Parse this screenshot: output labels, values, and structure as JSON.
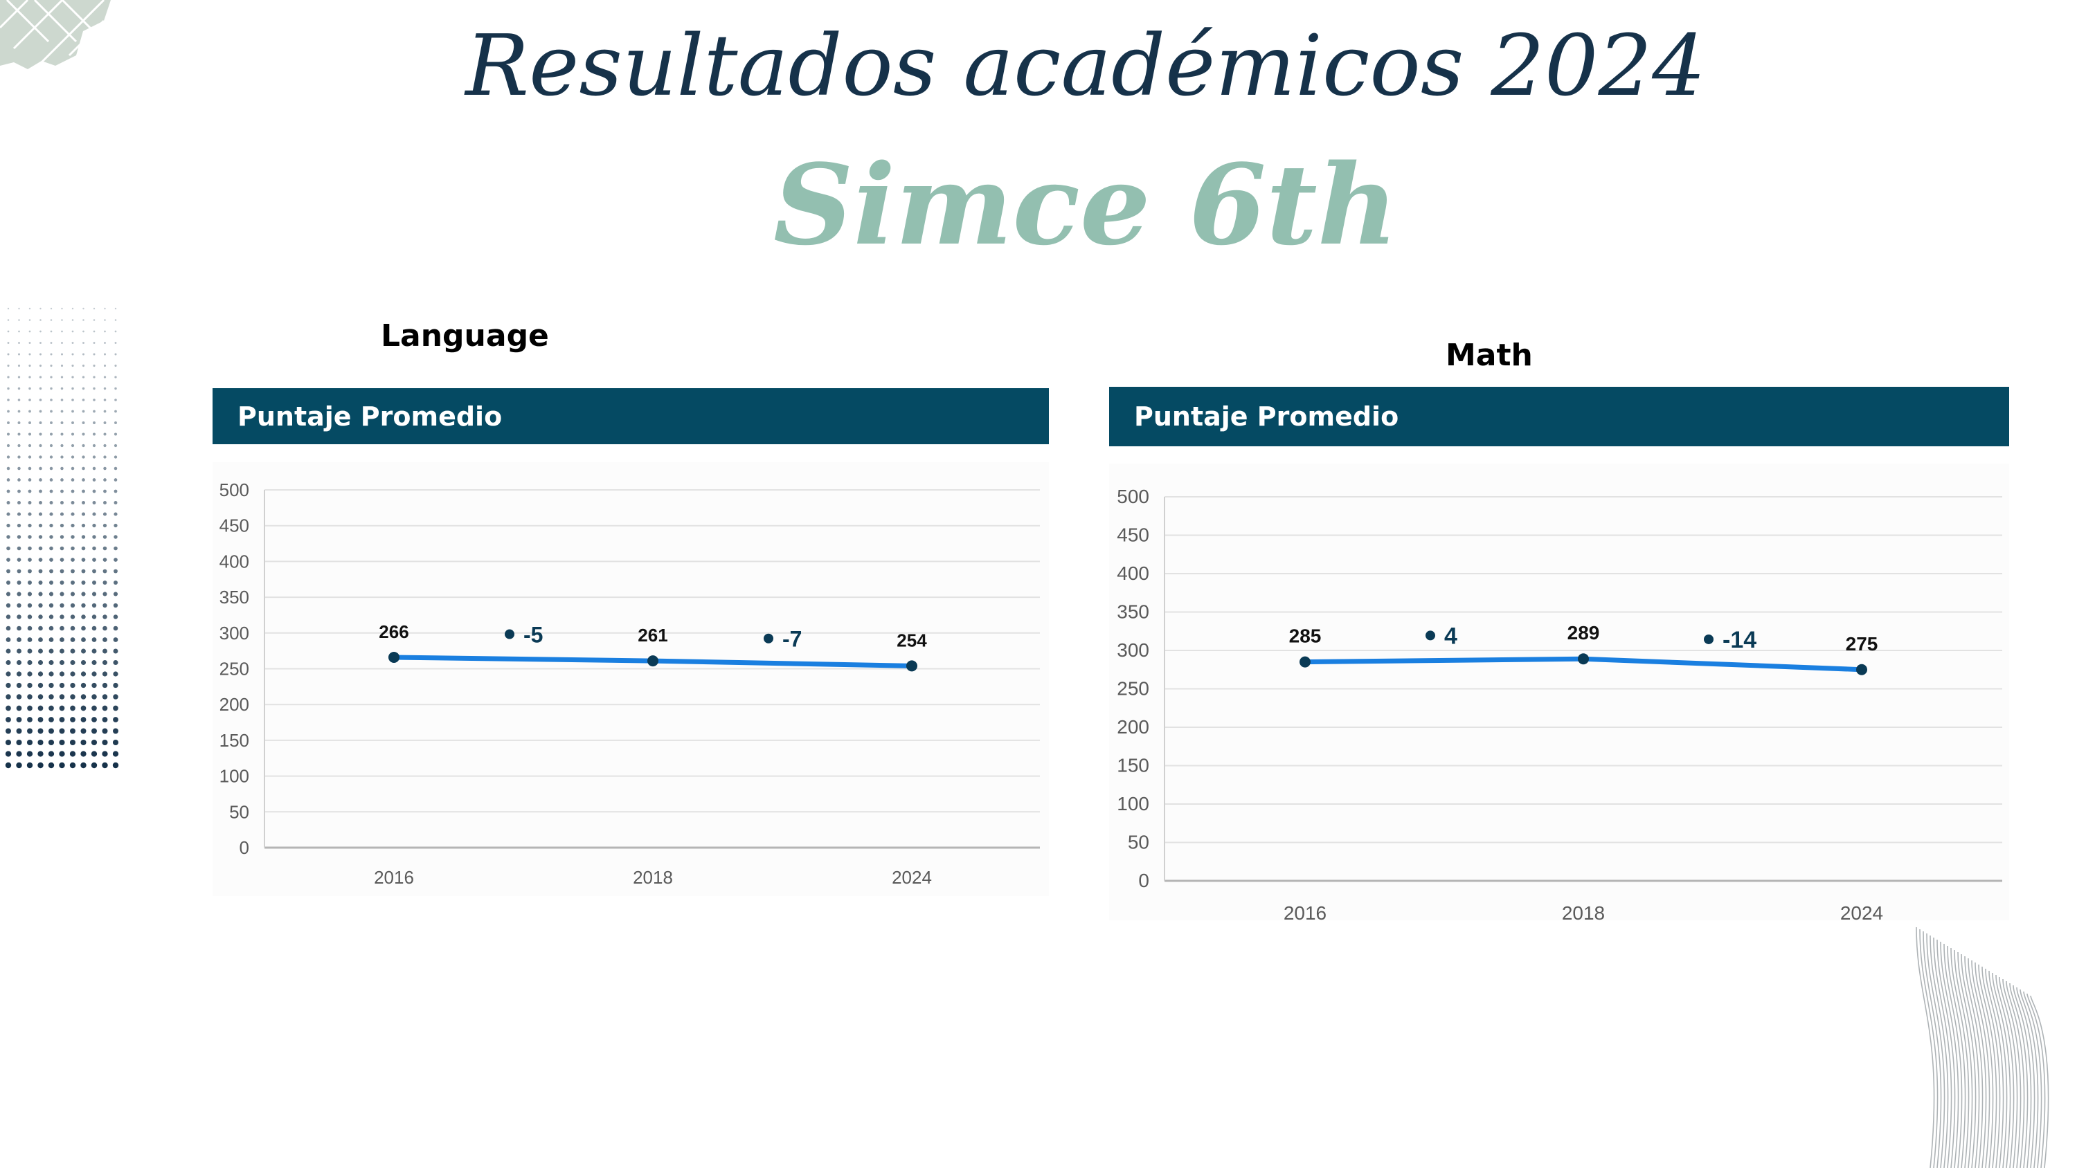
{
  "slide": {
    "title": "Resultados académicos 2024",
    "subtitle": "Simce 6th"
  },
  "colors": {
    "title": "#16324a",
    "subtitle": "#93bfb0",
    "header_band": "#054a63",
    "line": "#1a7fe0",
    "marker": "#0a3a55"
  },
  "chart_data": [
    {
      "type": "line",
      "panel_label": "Language",
      "header": "Puntaje Promedio",
      "x": [
        "2016",
        "2018",
        "2024"
      ],
      "series": [
        {
          "values": [
            266,
            261,
            254
          ]
        }
      ],
      "data_labels": [
        "266",
        "261",
        "254"
      ],
      "changes": [
        "-5",
        "-7"
      ],
      "ylim": [
        0,
        500
      ],
      "yticks": [
        0,
        50,
        100,
        150,
        200,
        250,
        300,
        350,
        400,
        450,
        500
      ],
      "grid": true
    },
    {
      "type": "line",
      "panel_label": "Math",
      "header": "Puntaje Promedio",
      "x": [
        "2016",
        "2018",
        "2024"
      ],
      "series": [
        {
          "values": [
            285,
            289,
            275
          ]
        }
      ],
      "data_labels": [
        "285",
        "289",
        "275"
      ],
      "changes": [
        "4",
        "-14"
      ],
      "ylim": [
        0,
        500
      ],
      "yticks": [
        0,
        50,
        100,
        150,
        200,
        250,
        300,
        350,
        400,
        450,
        500
      ],
      "grid": true
    }
  ]
}
